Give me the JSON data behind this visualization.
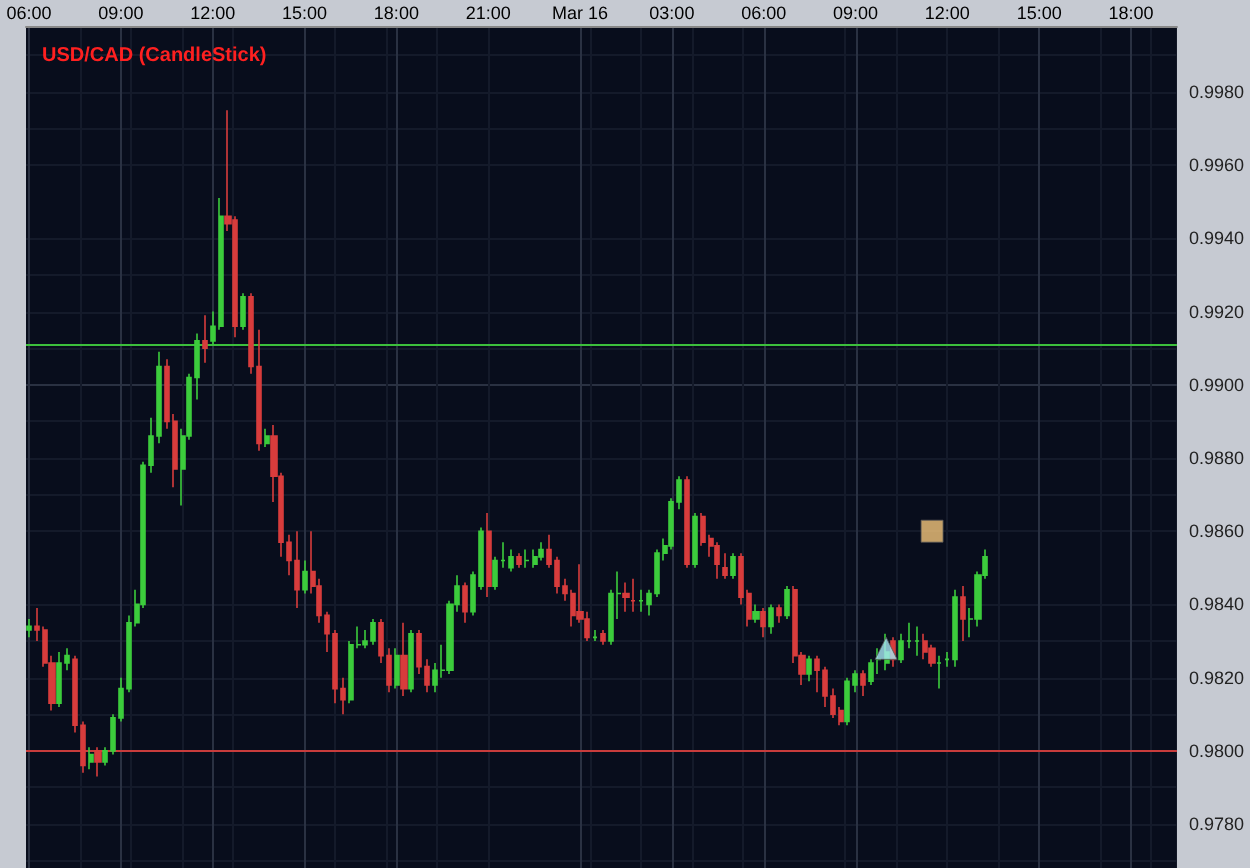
{
  "chart_data": {
    "type": "candlestick",
    "title": "USD/CAD (CandleStick)",
    "xlim": [
      "--03-15T05:54",
      "--03-16T19:30"
    ],
    "xticks": [
      {
        "value": "--03-15T06:00",
        "label": "06:00"
      },
      {
        "value": "--03-15T09:00",
        "label": "09:00"
      },
      {
        "value": "--03-15T12:00",
        "label": "12:00"
      },
      {
        "value": "--03-15T15:00",
        "label": "15:00"
      },
      {
        "value": "--03-15T18:00",
        "label": "18:00"
      },
      {
        "value": "--03-15T21:00",
        "label": "21:00"
      },
      {
        "value": "--03-16T00:00",
        "label": "Mar 16"
      },
      {
        "value": "--03-16T03:00",
        "label": "03:00"
      },
      {
        "value": "--03-16T06:00",
        "label": "06:00"
      },
      {
        "value": "--03-16T09:00",
        "label": "09:00"
      },
      {
        "value": "--03-16T12:00",
        "label": "12:00"
      },
      {
        "value": "--03-16T15:00",
        "label": "15:00"
      },
      {
        "value": "--03-16T18:00",
        "label": "18:00"
      }
    ],
    "ylim": [
      0.9768,
      0.9998
    ],
    "yticks": [
      {
        "value": 0.978,
        "label": "0.9780"
      },
      {
        "value": 0.98,
        "label": "0.9800"
      },
      {
        "value": 0.982,
        "label": "0.9820"
      },
      {
        "value": 0.984,
        "label": "0.9840"
      },
      {
        "value": 0.986,
        "label": "0.9860"
      },
      {
        "value": 0.988,
        "label": "0.9880"
      },
      {
        "value": 0.99,
        "label": "0.9900"
      },
      {
        "value": 0.992,
        "label": "0.9920"
      },
      {
        "value": 0.994,
        "label": "0.9940"
      },
      {
        "value": 0.996,
        "label": "0.9960"
      },
      {
        "value": 0.998,
        "label": "0.9980"
      }
    ],
    "grid": true,
    "ref_lines": [
      {
        "axis": "y",
        "value": 0.9911,
        "color": "#3cbf3c"
      },
      {
        "axis": "y",
        "value": 0.98,
        "color": "#c83c3c"
      }
    ],
    "series": [
      {
        "x": [
          "--03-15T06:00",
          "--03-15T06:15",
          "--03-15T06:30",
          "--03-15T06:45",
          "--03-15T07:00",
          "--03-15T07:15",
          "--03-15T07:30",
          "--03-15T07:45",
          "--03-15T08:00",
          "--03-15T08:15",
          "--03-15T08:30",
          "--03-15T08:45",
          "--03-15T09:00",
          "--03-15T09:15",
          "--03-15T09:30",
          "--03-15T09:45",
          "--03-15T10:00",
          "--03-15T10:15",
          "--03-15T10:30",
          "--03-15T10:45",
          "--03-15T11:00",
          "--03-15T11:15",
          "--03-15T11:30",
          "--03-15T11:45",
          "--03-15T12:00",
          "--03-15T12:15",
          "--03-15T12:30",
          "--03-15T12:45",
          "--03-15T13:00",
          "--03-15T13:15",
          "--03-15T13:30",
          "--03-15T13:45",
          "--03-15T14:00",
          "--03-15T14:15",
          "--03-15T14:30",
          "--03-15T14:45",
          "--03-15T15:00",
          "--03-15T15:15",
          "--03-15T15:30",
          "--03-15T15:45",
          "--03-15T16:00",
          "--03-15T16:15",
          "--03-15T16:30",
          "--03-15T16:45",
          "--03-15T17:00",
          "--03-15T17:15",
          "--03-15T17:30",
          "--03-15T17:45",
          "--03-15T18:00",
          "--03-15T18:15",
          "--03-15T18:30",
          "--03-15T18:45",
          "--03-15T19:00",
          "--03-15T19:15",
          "--03-15T19:30",
          "--03-15T19:45",
          "--03-15T20:00",
          "--03-15T20:15",
          "--03-15T20:30",
          "--03-15T20:45",
          "--03-15T21:00",
          "--03-15T21:15",
          "--03-15T21:30",
          "--03-15T21:45",
          "--03-15T22:00",
          "--03-15T22:15",
          "--03-15T22:30",
          "--03-15T22:45",
          "--03-15T23:00",
          "--03-15T23:15",
          "--03-15T23:30",
          "--03-15T23:45",
          "--03-16T00:00",
          "--03-16T00:15",
          "--03-16T00:30",
          "--03-16T00:45",
          "--03-16T01:00",
          "--03-16T01:15",
          "--03-16T01:30",
          "--03-16T01:45",
          "--03-16T02:00",
          "--03-16T02:15",
          "--03-16T02:30",
          "--03-16T02:45",
          "--03-16T03:00",
          "--03-16T03:15",
          "--03-16T03:30",
          "--03-16T03:45",
          "--03-16T04:00",
          "--03-16T04:15",
          "--03-16T04:30",
          "--03-16T04:45",
          "--03-16T05:00",
          "--03-16T05:15",
          "--03-16T05:30",
          "--03-16T05:45",
          "--03-16T06:00",
          "--03-16T06:15",
          "--03-16T06:30",
          "--03-16T06:45",
          "--03-16T07:00",
          "--03-16T07:15",
          "--03-16T07:30",
          "--03-16T07:45",
          "--03-16T08:00",
          "--03-16T08:15",
          "--03-16T08:30",
          "--03-16T08:45",
          "--03-16T09:00",
          "--03-16T09:15",
          "--03-16T09:30",
          "--03-16T09:45",
          "--03-16T10:00",
          "--03-16T10:15",
          "--03-16T10:30",
          "--03-16T10:45",
          "--03-16T11:00",
          "--03-16T11:15",
          "--03-16T11:30",
          "--03-16T11:45",
          "--03-16T12:00",
          "--03-16T12:15",
          "--03-16T12:30",
          "--03-16T12:45",
          "--03-16T13:00",
          "--03-16T13:15"
        ],
        "ohlc": [
          [
            0.9833,
            0.9836,
            0.9831,
            0.9834
          ],
          [
            0.9834,
            0.9839,
            0.983,
            0.9833
          ],
          [
            0.9833,
            0.9834,
            0.9823,
            0.9824
          ],
          [
            0.9824,
            0.9826,
            0.9811,
            0.9813
          ],
          [
            0.9813,
            0.9827,
            0.9812,
            0.9824
          ],
          [
            0.9824,
            0.9828,
            0.9822,
            0.9826
          ],
          [
            0.9825,
            0.9826,
            0.9805,
            0.9807
          ],
          [
            0.9807,
            0.9808,
            0.9794,
            0.9796
          ],
          [
            0.9797,
            0.9801,
            0.9795,
            0.9799
          ],
          [
            0.98,
            0.9801,
            0.9793,
            0.9797
          ],
          [
            0.9797,
            0.9801,
            0.9796,
            0.98
          ],
          [
            0.98,
            0.981,
            0.9799,
            0.9809
          ],
          [
            0.9809,
            0.982,
            0.9808,
            0.9817
          ],
          [
            0.9817,
            0.9837,
            0.9816,
            0.9835
          ],
          [
            0.9835,
            0.9844,
            0.9834,
            0.984
          ],
          [
            0.984,
            0.9879,
            0.9839,
            0.9878
          ],
          [
            0.9878,
            0.9891,
            0.9876,
            0.9886
          ],
          [
            0.9886,
            0.9909,
            0.9884,
            0.9905
          ],
          [
            0.9905,
            0.9907,
            0.9888,
            0.989
          ],
          [
            0.989,
            0.9892,
            0.9872,
            0.9877
          ],
          [
            0.9877,
            0.9888,
            0.9867,
            0.9886
          ],
          [
            0.9886,
            0.9903,
            0.9885,
            0.9902
          ],
          [
            0.9902,
            0.9914,
            0.9896,
            0.9912
          ],
          [
            0.9912,
            0.9919,
            0.9906,
            0.991
          ],
          [
            0.9912,
            0.992,
            0.9911,
            0.9916
          ],
          [
            0.9916,
            0.9951,
            0.9915,
            0.9946
          ],
          [
            0.9946,
            0.9975,
            0.9942,
            0.9944
          ],
          [
            0.9945,
            0.9946,
            0.9913,
            0.9916
          ],
          [
            0.9916,
            0.9925,
            0.9915,
            0.9924
          ],
          [
            0.9924,
            0.9925,
            0.9903,
            0.9905
          ],
          [
            0.9905,
            0.9915,
            0.9882,
            0.9884
          ],
          [
            0.9884,
            0.9888,
            0.9883,
            0.9886
          ],
          [
            0.9886,
            0.9889,
            0.9868,
            0.9875
          ],
          [
            0.9875,
            0.9876,
            0.9853,
            0.9857
          ],
          [
            0.9857,
            0.9859,
            0.9848,
            0.9852
          ],
          [
            0.9852,
            0.986,
            0.9839,
            0.9844
          ],
          [
            0.9844,
            0.9852,
            0.9843,
            0.9849
          ],
          [
            0.9849,
            0.986,
            0.9843,
            0.9845
          ],
          [
            0.9845,
            0.9847,
            0.9835,
            0.9837
          ],
          [
            0.9837,
            0.9838,
            0.9827,
            0.9832
          ],
          [
            0.9832,
            0.9833,
            0.9813,
            0.9817
          ],
          [
            0.9817,
            0.982,
            0.981,
            0.9814
          ],
          [
            0.9814,
            0.983,
            0.9813,
            0.9829
          ],
          [
            0.9829,
            0.9834,
            0.9828,
            0.9829
          ],
          [
            0.9829,
            0.9833,
            0.9828,
            0.983
          ],
          [
            0.983,
            0.9836,
            0.9829,
            0.9835
          ],
          [
            0.9835,
            0.9836,
            0.9824,
            0.9826
          ],
          [
            0.9826,
            0.9828,
            0.9816,
            0.9818
          ],
          [
            0.9818,
            0.9828,
            0.9817,
            0.9826
          ],
          [
            0.9826,
            0.9835,
            0.9815,
            0.9817
          ],
          [
            0.9817,
            0.9833,
            0.9816,
            0.9832
          ],
          [
            0.9832,
            0.9833,
            0.9821,
            0.9823
          ],
          [
            0.9823,
            0.9825,
            0.9816,
            0.9818
          ],
          [
            0.9818,
            0.9824,
            0.9816,
            0.9822
          ],
          [
            0.9822,
            0.9829,
            0.982,
            0.9822
          ],
          [
            0.9822,
            0.9841,
            0.9821,
            0.984
          ],
          [
            0.984,
            0.9848,
            0.9838,
            0.9845
          ],
          [
            0.9845,
            0.9846,
            0.9835,
            0.9838
          ],
          [
            0.9838,
            0.9849,
            0.9837,
            0.9848
          ],
          [
            0.9845,
            0.9861,
            0.9844,
            0.986
          ],
          [
            0.986,
            0.9865,
            0.9842,
            0.9845
          ],
          [
            0.9845,
            0.9853,
            0.9844,
            0.9852
          ],
          [
            0.9852,
            0.9857,
            0.985,
            0.9852
          ],
          [
            0.985,
            0.9855,
            0.9849,
            0.9853
          ],
          [
            0.9853,
            0.9854,
            0.985,
            0.9851
          ],
          [
            0.9852,
            0.9855,
            0.985,
            0.9852
          ],
          [
            0.9851,
            0.9855,
            0.985,
            0.9853
          ],
          [
            0.9853,
            0.9857,
            0.9852,
            0.9855
          ],
          [
            0.9855,
            0.9859,
            0.985,
            0.9851
          ],
          [
            0.9852,
            0.9853,
            0.9843,
            0.9845
          ],
          [
            0.9845,
            0.9847,
            0.9841,
            0.9843
          ],
          [
            0.9843,
            0.9844,
            0.9834,
            0.9837
          ],
          [
            0.9838,
            0.9851,
            0.9835,
            0.9836
          ],
          [
            0.9836,
            0.9838,
            0.983,
            0.9831
          ],
          [
            0.9831,
            0.9833,
            0.983,
            0.9831
          ],
          [
            0.9832,
            0.9833,
            0.9829,
            0.983
          ],
          [
            0.983,
            0.9844,
            0.9829,
            0.9843
          ],
          [
            0.9843,
            0.9849,
            0.9836,
            0.9843
          ],
          [
            0.9843,
            0.9846,
            0.9838,
            0.9842
          ],
          [
            0.9841,
            0.9847,
            0.9838,
            0.9841
          ],
          [
            0.9841,
            0.9844,
            0.9838,
            0.9841
          ],
          [
            0.984,
            0.9844,
            0.9837,
            0.9843
          ],
          [
            0.9843,
            0.9855,
            0.9842,
            0.9854
          ],
          [
            0.9854,
            0.9858,
            0.9852,
            0.9856
          ],
          [
            0.9856,
            0.9869,
            0.9855,
            0.9868
          ],
          [
            0.9868,
            0.9875,
            0.9866,
            0.9874
          ],
          [
            0.9874,
            0.9875,
            0.985,
            0.9851
          ],
          [
            0.9851,
            0.9865,
            0.985,
            0.9864
          ],
          [
            0.9864,
            0.9865,
            0.9856,
            0.9857
          ],
          [
            0.9858,
            0.9859,
            0.9853,
            0.9856
          ],
          [
            0.9856,
            0.9857,
            0.9847,
            0.9851
          ],
          [
            0.985,
            0.9854,
            0.9847,
            0.9848
          ],
          [
            0.9848,
            0.9854,
            0.9847,
            0.9853
          ],
          [
            0.9853,
            0.9854,
            0.984,
            0.9842
          ],
          [
            0.9843,
            0.9844,
            0.9834,
            0.9836
          ],
          [
            0.9836,
            0.984,
            0.9835,
            0.9838
          ],
          [
            0.9838,
            0.9839,
            0.9831,
            0.9834
          ],
          [
            0.9834,
            0.984,
            0.9832,
            0.9839
          ],
          [
            0.9839,
            0.984,
            0.9835,
            0.9837
          ],
          [
            0.9837,
            0.9845,
            0.9836,
            0.9844
          ],
          [
            0.9844,
            0.9845,
            0.9824,
            0.9826
          ],
          [
            0.9826,
            0.9827,
            0.9818,
            0.9821
          ],
          [
            0.9821,
            0.9826,
            0.9819,
            0.9825
          ],
          [
            0.9825,
            0.9826,
            0.9816,
            0.9822
          ],
          [
            0.9822,
            0.9823,
            0.9812,
            0.9815
          ],
          [
            0.9815,
            0.9817,
            0.9809,
            0.981
          ],
          [
            0.9811,
            0.9812,
            0.9807,
            0.9808
          ],
          [
            0.9808,
            0.982,
            0.9807,
            0.9819
          ],
          [
            0.9818,
            0.9822,
            0.9816,
            0.9821
          ],
          [
            0.9821,
            0.9822,
            0.9815,
            0.9818
          ],
          [
            0.9819,
            0.9825,
            0.9818,
            0.9824
          ],
          [
            0.9825,
            0.9828,
            0.9821,
            0.9825
          ],
          [
            0.9824,
            0.9832,
            0.9822,
            0.9827
          ],
          [
            0.983,
            0.9831,
            0.9823,
            0.9825
          ],
          [
            0.9825,
            0.9832,
            0.9824,
            0.983
          ],
          [
            0.983,
            0.9835,
            0.9828,
            0.983
          ],
          [
            0.983,
            0.9834,
            0.9826,
            0.983
          ],
          [
            0.983,
            0.9832,
            0.9825,
            0.9827
          ],
          [
            0.9828,
            0.9829,
            0.9823,
            0.9824
          ],
          [
            0.9824,
            0.9826,
            0.9817,
            0.9824
          ],
          [
            0.9825,
            0.9827,
            0.9823,
            0.9825
          ],
          [
            0.9825,
            0.9844,
            0.9823,
            0.9842
          ],
          [
            0.9842,
            0.9845,
            0.983,
            0.9836
          ],
          [
            0.9836,
            0.9839,
            0.9831,
            0.9836
          ],
          [
            0.9836,
            0.9849,
            0.9834,
            0.9848
          ],
          [
            0.9848,
            0.9855,
            0.9847,
            0.9853
          ]
        ]
      },
      {
        "type": "scatter",
        "x": [
          "--03-16T10:00"
        ],
        "values": [
          0.9828
        ],
        "color": "#a8e8f4",
        "marker": "triangle"
      },
      {
        "type": "scatter",
        "x": [
          "--03-16T11:30"
        ],
        "values": [
          0.986
        ],
        "color": "#f4c67c",
        "marker": "square"
      }
    ]
  }
}
